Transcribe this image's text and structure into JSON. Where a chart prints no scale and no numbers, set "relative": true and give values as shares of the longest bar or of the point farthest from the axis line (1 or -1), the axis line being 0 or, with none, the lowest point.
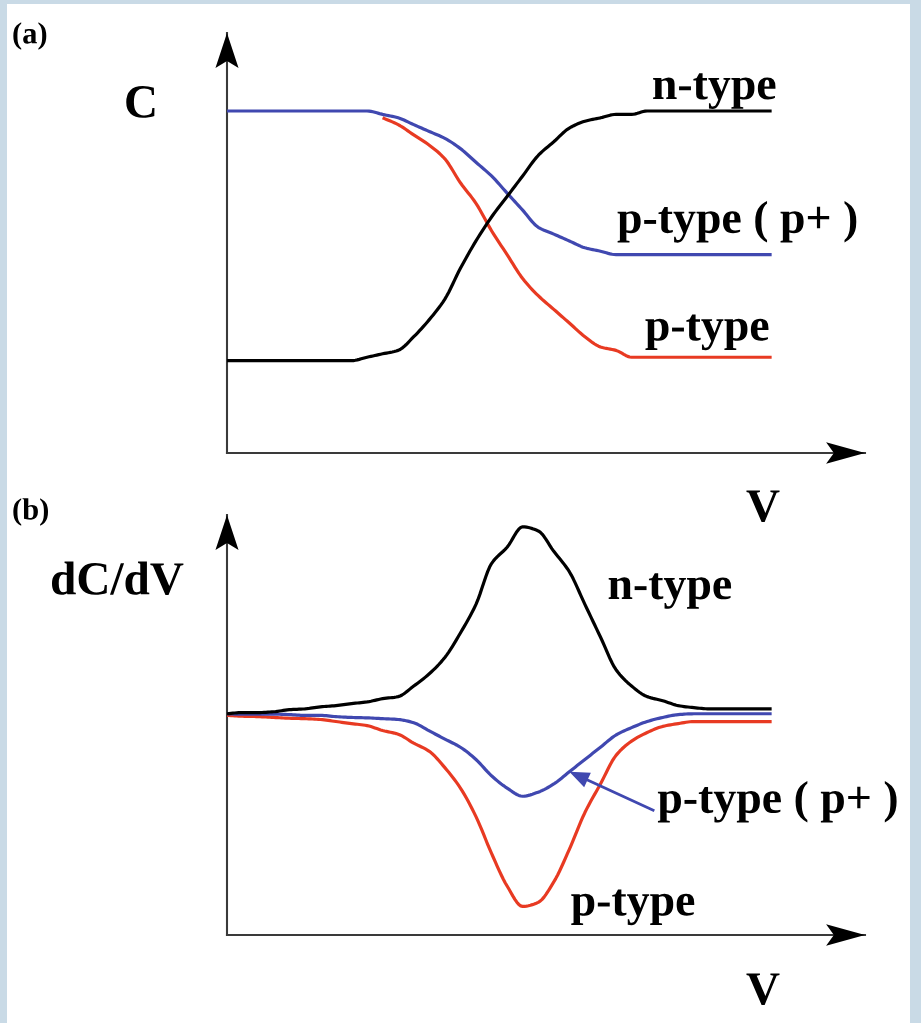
{
  "chart_data": [
    {
      "type": "line",
      "title": "(a)",
      "xlabel": "V",
      "ylabel": "C",
      "relative": true,
      "categories": [
        null,
        null,
        null,
        null,
        null,
        null,
        null,
        null,
        null,
        null,
        null,
        null,
        null,
        null,
        null,
        null,
        null,
        null,
        null,
        null,
        null,
        null,
        null,
        null,
        null,
        null,
        null,
        null,
        null,
        null,
        null,
        null,
        null,
        null,
        null,
        null,
        null,
        null,
        null,
        null,
        null,
        null
      ],
      "series": [
        {
          "name": "n-type",
          "color": "#000000",
          "values": [
            0.27,
            0.27,
            0.27,
            0.27,
            0.27,
            0.27,
            0.27,
            0.27,
            0.27,
            0.28,
            0.29,
            0.3,
            0.34,
            0.39,
            0.45,
            0.54,
            0.62,
            0.69,
            0.75,
            0.81,
            0.87,
            0.91,
            0.95,
            0.97,
            0.98,
            0.99,
            0.99,
            1.0,
            1.0,
            1.0,
            1.0,
            1.0,
            1.0,
            1.0,
            1.0,
            1.0,
            null,
            null,
            null,
            null,
            null,
            null
          ]
        },
        {
          "name": "p-type ( p+ )",
          "color": "#4048b0",
          "values": [
            1.0,
            1.0,
            1.0,
            1.0,
            1.0,
            1.0,
            1.0,
            1.0,
            1.0,
            1.0,
            0.99,
            0.98,
            0.96,
            0.94,
            0.92,
            0.89,
            0.85,
            0.81,
            0.76,
            0.71,
            0.66,
            0.64,
            0.62,
            0.6,
            0.59,
            0.58,
            0.58,
            0.58,
            0.58,
            0.58,
            0.58,
            0.58,
            0.58,
            0.58,
            0.58,
            0.58,
            null,
            null,
            null,
            null,
            null,
            null
          ]
        },
        {
          "name": "p-type",
          "color": "#e83a22",
          "values": [
            null,
            null,
            null,
            null,
            null,
            null,
            null,
            null,
            null,
            null,
            0.98,
            0.96,
            0.93,
            0.9,
            0.86,
            0.79,
            0.73,
            0.65,
            0.58,
            0.51,
            0.46,
            0.42,
            0.38,
            0.34,
            0.31,
            0.3,
            0.28,
            0.28,
            0.28,
            0.28,
            0.28,
            0.28,
            0.28,
            0.28,
            0.28,
            0.28,
            null,
            null,
            null,
            null,
            null,
            null
          ]
        }
      ]
    },
    {
      "type": "line",
      "title": "(b)",
      "xlabel": "V",
      "ylabel": "dC/dV",
      "relative": true,
      "categories": [
        null,
        null,
        null,
        null,
        null,
        null,
        null,
        null,
        null,
        null,
        null,
        null,
        null,
        null,
        null,
        null,
        null,
        null,
        null,
        null,
        null,
        null,
        null,
        null,
        null,
        null,
        null,
        null,
        null,
        null,
        null,
        null,
        null,
        null,
        null,
        null,
        null,
        null,
        null,
        null,
        null,
        null
      ],
      "series": [
        {
          "name": "n-type",
          "color": "#000000",
          "values": [
            0.542,
            0.545,
            0.545,
            0.547,
            0.552,
            0.554,
            0.559,
            0.562,
            0.567,
            0.571,
            0.579,
            0.584,
            0.61,
            0.64,
            0.68,
            0.74,
            0.81,
            0.91,
            0.95,
            1.0,
            0.99,
            0.94,
            0.89,
            0.81,
            0.73,
            0.65,
            0.61,
            0.584,
            0.574,
            0.562,
            0.557,
            0.554,
            0.554,
            0.554,
            0.554,
            0.554,
            null,
            null,
            null,
            null,
            null,
            null
          ]
        },
        {
          "name": "p-type ( p+ )",
          "color": "#4048b0",
          "values": [
            0.542,
            0.541,
            0.541,
            0.541,
            0.54,
            0.538,
            0.538,
            0.535,
            0.533,
            0.532,
            0.53,
            0.528,
            0.52,
            0.5,
            0.48,
            0.46,
            0.43,
            0.39,
            0.36,
            0.34,
            0.35,
            0.37,
            0.4,
            0.43,
            0.46,
            0.49,
            0.508,
            0.523,
            0.533,
            0.54,
            0.542,
            0.542,
            0.542,
            0.542,
            0.542,
            0.542,
            null,
            null,
            null,
            null,
            null,
            null
          ]
        },
        {
          "name": "p-type",
          "color": "#e83a22",
          "values": [
            0.538,
            0.536,
            0.535,
            0.533,
            0.531,
            0.53,
            0.528,
            0.523,
            0.518,
            0.513,
            0.501,
            0.492,
            0.47,
            0.45,
            0.41,
            0.36,
            0.29,
            0.2,
            0.12,
            0.07,
            0.08,
            0.13,
            0.21,
            0.3,
            0.37,
            0.44,
            0.475,
            0.496,
            0.511,
            0.518,
            0.523,
            0.523,
            0.523,
            0.523,
            0.523,
            0.523,
            null,
            null,
            null,
            null,
            null,
            null
          ]
        }
      ]
    }
  ]
}
